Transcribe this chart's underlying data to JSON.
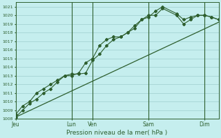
{
  "xlabel": "Pression niveau de la mer( hPa )",
  "ylim": [
    1008,
    1021.5
  ],
  "ytick_min": 1008,
  "ytick_max": 1021,
  "bg_color": "#c5eeee",
  "grid_color": "#9ecece",
  "line_color": "#2d5e2d",
  "xtick_labels": [
    "Jeu",
    "Lun",
    "Ven",
    "Sam",
    "Dim"
  ],
  "xtick_positions": [
    0,
    4,
    5.5,
    9.5,
    13.5
  ],
  "xlim": [
    0,
    14.5
  ],
  "vline_positions": [
    0,
    4,
    5.5,
    9.5,
    13.5
  ],
  "trend_x": [
    0,
    14.5
  ],
  "trend_y": [
    1008.2,
    1019.2
  ],
  "line1_x": [
    0,
    0.5,
    1.0,
    1.5,
    2.0,
    2.5,
    3.0,
    3.5,
    4.0,
    4.5,
    5.0,
    5.5,
    6.0,
    6.5,
    7.0,
    7.5,
    8.0,
    8.5,
    9.0,
    9.5,
    10.0,
    10.5,
    11.5,
    12.0,
    12.5,
    13.0,
    13.5,
    14.0,
    14.5
  ],
  "line1_y": [
    1008.2,
    1009.0,
    1009.8,
    1010.3,
    1011.0,
    1011.5,
    1012.3,
    1013.0,
    1013.2,
    1013.2,
    1013.3,
    1014.8,
    1015.5,
    1016.5,
    1017.2,
    1017.5,
    1018.0,
    1018.8,
    1019.5,
    1019.8,
    1020.5,
    1021.0,
    1020.2,
    1019.5,
    1019.8,
    1020.0,
    1020.0,
    1019.8,
    1019.5
  ],
  "line2_x": [
    0,
    0.5,
    1.0,
    1.5,
    2.0,
    2.5,
    3.0,
    3.5,
    4.0,
    4.5,
    5.0,
    5.5,
    6.0,
    6.5,
    7.0,
    7.5,
    8.0,
    8.5,
    9.0,
    9.5,
    10.0,
    10.5,
    11.5,
    12.0,
    12.5,
    13.0,
    13.5,
    14.0,
    14.5
  ],
  "line2_y": [
    1008.5,
    1009.5,
    1010.0,
    1011.0,
    1011.5,
    1012.0,
    1012.5,
    1013.0,
    1013.0,
    1013.3,
    1014.5,
    1015.0,
    1016.5,
    1017.2,
    1017.5,
    1017.5,
    1018.0,
    1018.5,
    1019.5,
    1020.0,
    1020.0,
    1020.8,
    1020.0,
    1019.0,
    1019.5,
    1020.0,
    1020.0,
    1019.8,
    1019.5
  ]
}
